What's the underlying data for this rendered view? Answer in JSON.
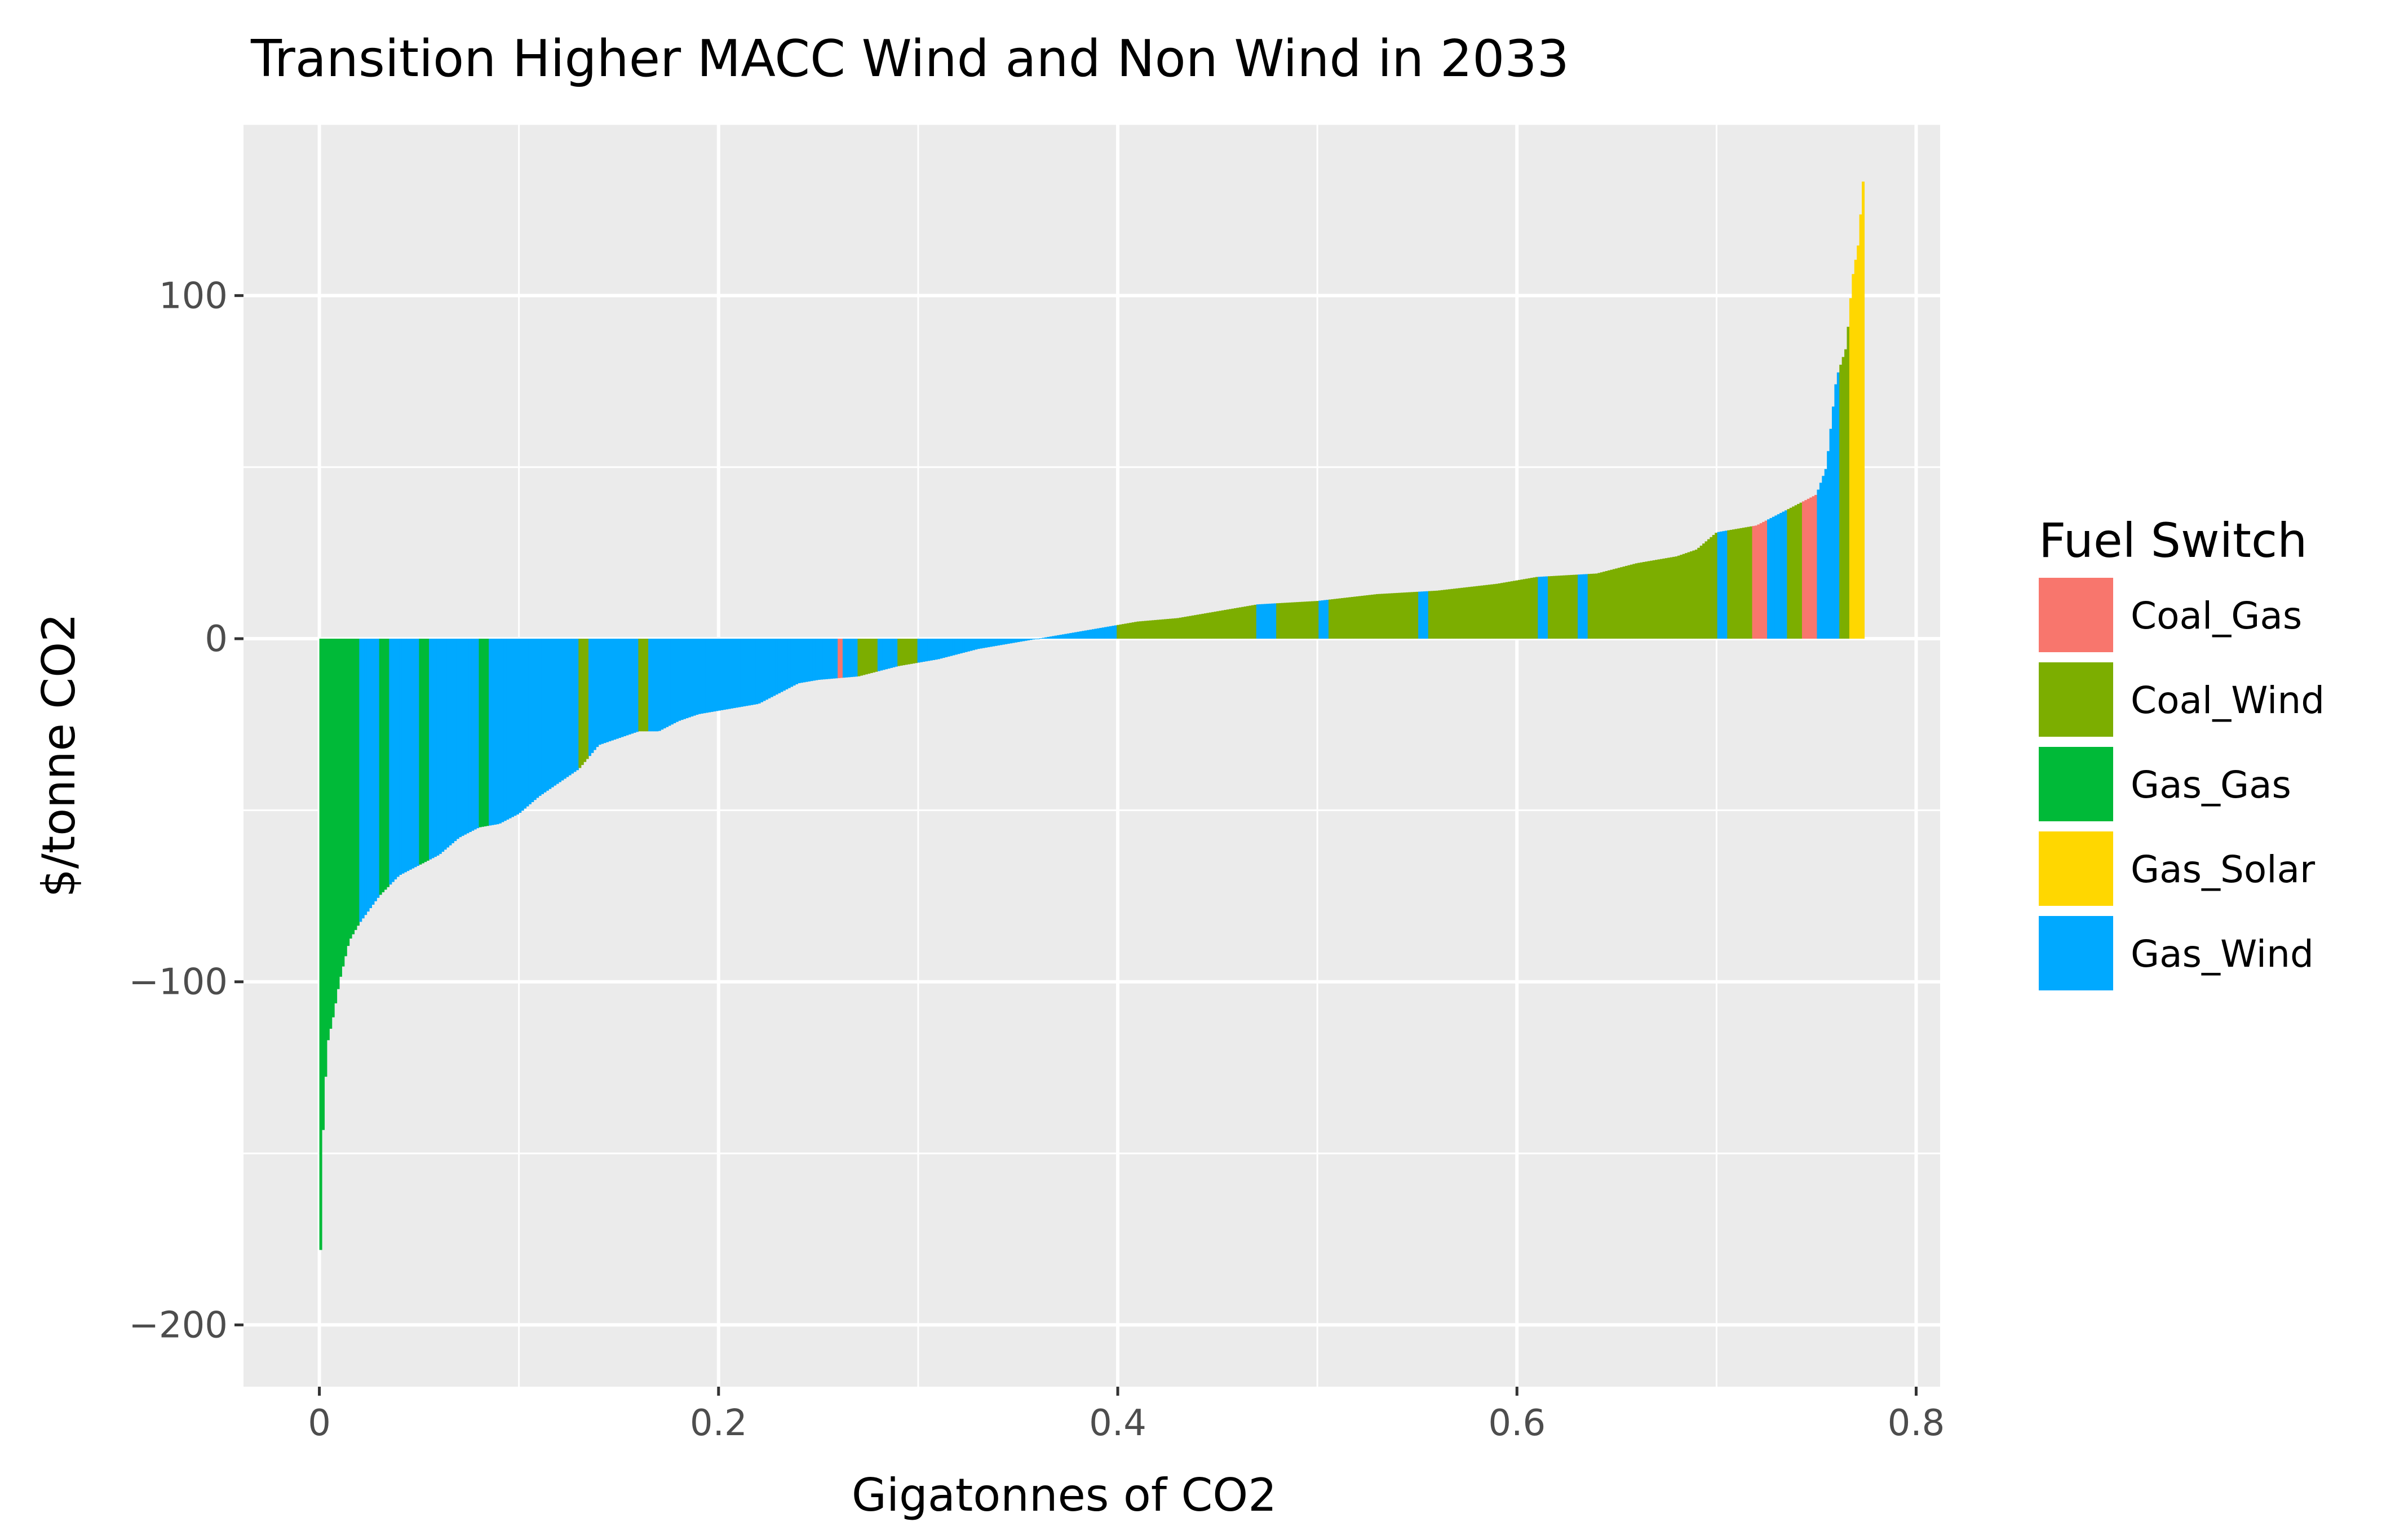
{
  "chart_data": {
    "type": "bar",
    "variant": "marginal abatement cost curve (variable-width bars, cumulative x)",
    "title": "Transition Higher MACC Wind and Non Wind in 2033",
    "xlabel": "Gigatonnes of CO2",
    "ylabel": "$/tonne CO2",
    "xlim": [
      -0.038,
      0.812
    ],
    "ylim": [
      -218,
      150
    ],
    "x_ticks": [
      0,
      0.2,
      0.4,
      0.6,
      0.8
    ],
    "x_tick_labels": [
      "0",
      "0.2",
      "0.4",
      "0.6",
      "0.8"
    ],
    "y_ticks": [
      -200,
      -100,
      0,
      100
    ],
    "y_tick_labels": [
      "−200",
      "−100",
      "0",
      "100"
    ],
    "grid": true,
    "legend": {
      "title": "Fuel Switch",
      "position": "right",
      "entries": [
        "Coal_Gas",
        "Coal_Wind",
        "Gas_Gas",
        "Gas_Solar",
        "Gas_Wind"
      ]
    },
    "colors": {
      "Coal_Gas": "#F8766D",
      "Coal_Wind": "#7CAE00",
      "Gas_Gas": "#00BA38",
      "Gas_Solar": "#FFD700",
      "Gas_Wind": "#00A9FF"
    },
    "background": "#EBEBEB",
    "curve": {
      "description": "approximate envelope of sorted bar heights; each bar spans a cumulative x interval",
      "points": [
        {
          "x": 0.0,
          "y": -200
        },
        {
          "x": 0.001,
          "y": -165
        },
        {
          "x": 0.002,
          "y": -140
        },
        {
          "x": 0.004,
          "y": -118
        },
        {
          "x": 0.007,
          "y": -110
        },
        {
          "x": 0.01,
          "y": -100
        },
        {
          "x": 0.015,
          "y": -88
        },
        {
          "x": 0.02,
          "y": -83
        },
        {
          "x": 0.03,
          "y": -75
        },
        {
          "x": 0.04,
          "y": -69
        },
        {
          "x": 0.05,
          "y": -66
        },
        {
          "x": 0.06,
          "y": -63
        },
        {
          "x": 0.07,
          "y": -58
        },
        {
          "x": 0.08,
          "y": -55
        },
        {
          "x": 0.09,
          "y": -54
        },
        {
          "x": 0.1,
          "y": -51
        },
        {
          "x": 0.11,
          "y": -46
        },
        {
          "x": 0.12,
          "y": -42
        },
        {
          "x": 0.13,
          "y": -38
        },
        {
          "x": 0.14,
          "y": -31
        },
        {
          "x": 0.15,
          "y": -29
        },
        {
          "x": 0.16,
          "y": -27
        },
        {
          "x": 0.17,
          "y": -27
        },
        {
          "x": 0.18,
          "y": -24
        },
        {
          "x": 0.19,
          "y": -22
        },
        {
          "x": 0.2,
          "y": -21
        },
        {
          "x": 0.21,
          "y": -20
        },
        {
          "x": 0.22,
          "y": -19
        },
        {
          "x": 0.23,
          "y": -16
        },
        {
          "x": 0.24,
          "y": -13
        },
        {
          "x": 0.25,
          "y": -12
        },
        {
          "x": 0.27,
          "y": -11
        },
        {
          "x": 0.29,
          "y": -8
        },
        {
          "x": 0.31,
          "y": -6
        },
        {
          "x": 0.33,
          "y": -3
        },
        {
          "x": 0.35,
          "y": -1
        },
        {
          "x": 0.37,
          "y": 1
        },
        {
          "x": 0.39,
          "y": 3
        },
        {
          "x": 0.41,
          "y": 5
        },
        {
          "x": 0.43,
          "y": 6
        },
        {
          "x": 0.45,
          "y": 8
        },
        {
          "x": 0.47,
          "y": 10
        },
        {
          "x": 0.5,
          "y": 11
        },
        {
          "x": 0.53,
          "y": 13
        },
        {
          "x": 0.56,
          "y": 14
        },
        {
          "x": 0.59,
          "y": 16
        },
        {
          "x": 0.61,
          "y": 18
        },
        {
          "x": 0.64,
          "y": 19
        },
        {
          "x": 0.66,
          "y": 22
        },
        {
          "x": 0.68,
          "y": 24
        },
        {
          "x": 0.69,
          "y": 26
        },
        {
          "x": 0.7,
          "y": 31
        },
        {
          "x": 0.72,
          "y": 33
        },
        {
          "x": 0.73,
          "y": 36
        },
        {
          "x": 0.74,
          "y": 39
        },
        {
          "x": 0.75,
          "y": 42
        },
        {
          "x": 0.755,
          "y": 50
        },
        {
          "x": 0.76,
          "y": 76
        },
        {
          "x": 0.765,
          "y": 85
        },
        {
          "x": 0.768,
          "y": 105
        },
        {
          "x": 0.771,
          "y": 115
        },
        {
          "x": 0.774,
          "y": 138
        }
      ]
    },
    "segments": [
      {
        "x0": 0.0,
        "x1": 0.001,
        "fuel": "Gas_Gas"
      },
      {
        "x0": 0.001,
        "x1": 0.02,
        "fuel": "Gas_Gas"
      },
      {
        "x0": 0.02,
        "x1": 0.03,
        "fuel": "Gas_Wind"
      },
      {
        "x0": 0.03,
        "x1": 0.035,
        "fuel": "Gas_Gas"
      },
      {
        "x0": 0.035,
        "x1": 0.05,
        "fuel": "Gas_Wind"
      },
      {
        "x0": 0.05,
        "x1": 0.055,
        "fuel": "Gas_Gas"
      },
      {
        "x0": 0.055,
        "x1": 0.08,
        "fuel": "Gas_Wind"
      },
      {
        "x0": 0.08,
        "x1": 0.085,
        "fuel": "Gas_Gas"
      },
      {
        "x0": 0.085,
        "x1": 0.13,
        "fuel": "Gas_Wind"
      },
      {
        "x0": 0.13,
        "x1": 0.135,
        "fuel": "Coal_Wind"
      },
      {
        "x0": 0.135,
        "x1": 0.16,
        "fuel": "Gas_Wind"
      },
      {
        "x0": 0.16,
        "x1": 0.165,
        "fuel": "Coal_Wind"
      },
      {
        "x0": 0.165,
        "x1": 0.26,
        "fuel": "Gas_Wind"
      },
      {
        "x0": 0.26,
        "x1": 0.262,
        "fuel": "Coal_Gas"
      },
      {
        "x0": 0.262,
        "x1": 0.27,
        "fuel": "Gas_Wind"
      },
      {
        "x0": 0.27,
        "x1": 0.28,
        "fuel": "Coal_Wind"
      },
      {
        "x0": 0.28,
        "x1": 0.29,
        "fuel": "Gas_Wind"
      },
      {
        "x0": 0.29,
        "x1": 0.3,
        "fuel": "Coal_Wind"
      },
      {
        "x0": 0.3,
        "x1": 0.4,
        "fuel": "Gas_Wind"
      },
      {
        "x0": 0.4,
        "x1": 0.47,
        "fuel": "Coal_Wind"
      },
      {
        "x0": 0.47,
        "x1": 0.48,
        "fuel": "Gas_Wind"
      },
      {
        "x0": 0.48,
        "x1": 0.5,
        "fuel": "Coal_Wind"
      },
      {
        "x0": 0.5,
        "x1": 0.505,
        "fuel": "Gas_Wind"
      },
      {
        "x0": 0.505,
        "x1": 0.55,
        "fuel": "Coal_Wind"
      },
      {
        "x0": 0.55,
        "x1": 0.555,
        "fuel": "Gas_Wind"
      },
      {
        "x0": 0.555,
        "x1": 0.61,
        "fuel": "Coal_Wind"
      },
      {
        "x0": 0.61,
        "x1": 0.615,
        "fuel": "Gas_Wind"
      },
      {
        "x0": 0.615,
        "x1": 0.63,
        "fuel": "Coal_Wind"
      },
      {
        "x0": 0.63,
        "x1": 0.635,
        "fuel": "Gas_Wind"
      },
      {
        "x0": 0.635,
        "x1": 0.7,
        "fuel": "Coal_Wind"
      },
      {
        "x0": 0.7,
        "x1": 0.705,
        "fuel": "Gas_Wind"
      },
      {
        "x0": 0.705,
        "x1": 0.718,
        "fuel": "Coal_Wind"
      },
      {
        "x0": 0.718,
        "x1": 0.725,
        "fuel": "Coal_Gas"
      },
      {
        "x0": 0.725,
        "x1": 0.735,
        "fuel": "Gas_Wind"
      },
      {
        "x0": 0.735,
        "x1": 0.743,
        "fuel": "Coal_Wind"
      },
      {
        "x0": 0.743,
        "x1": 0.75,
        "fuel": "Coal_Gas"
      },
      {
        "x0": 0.75,
        "x1": 0.757,
        "fuel": "Gas_Wind"
      },
      {
        "x0": 0.757,
        "x1": 0.762,
        "fuel": "Gas_Wind"
      },
      {
        "x0": 0.762,
        "x1": 0.766,
        "fuel": "Coal_Wind"
      },
      {
        "x0": 0.766,
        "x1": 0.775,
        "fuel": "Gas_Solar"
      }
    ]
  }
}
